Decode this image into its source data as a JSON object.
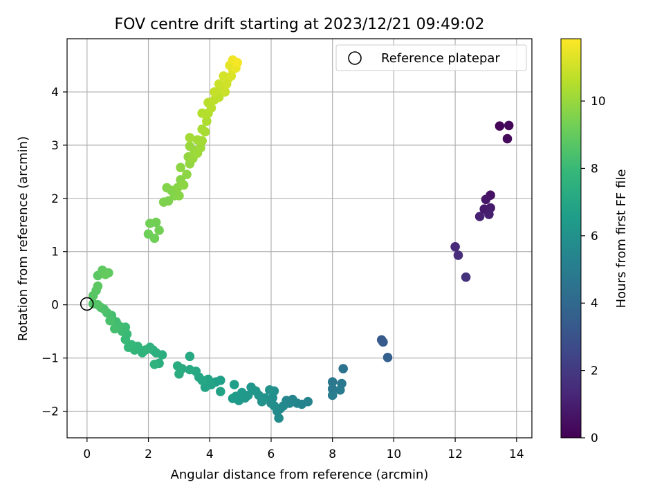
{
  "chart_data": {
    "type": "scatter",
    "title": "FOV centre drift starting at 2023/12/21 09:49:02",
    "xlabel": "Angular distance from reference (arcmin)",
    "ylabel": "Rotation from reference (arcmin)",
    "xlim": [
      -0.65,
      14.5
    ],
    "ylim": [
      -2.5,
      5.0
    ],
    "xticks": [
      0,
      2,
      4,
      6,
      8,
      10,
      12,
      14
    ],
    "yticks": [
      -2,
      -1,
      0,
      1,
      2,
      3,
      4
    ],
    "grid": true,
    "legend": {
      "position": "upper-right",
      "entries": [
        "Reference platepar"
      ]
    },
    "reference_point": {
      "x": 0,
      "y": 0,
      "marker": "open-circle"
    },
    "colorbar": {
      "label": "Hours from first FF file",
      "colormap": "viridis",
      "min": 0,
      "max": 11.85,
      "ticks": [
        0,
        2,
        4,
        6,
        8,
        10
      ]
    },
    "series": [
      {
        "color_by": "hours",
        "points": [
          {
            "x": 13.45,
            "y": 3.36,
            "c": 0.1
          },
          {
            "x": 13.75,
            "y": 3.37,
            "c": 0.2
          },
          {
            "x": 13.7,
            "y": 3.12,
            "c": 0.3
          },
          {
            "x": 13.15,
            "y": 2.06,
            "c": 0.6
          },
          {
            "x": 13.0,
            "y": 1.98,
            "c": 0.7
          },
          {
            "x": 12.95,
            "y": 1.8,
            "c": 0.8
          },
          {
            "x": 13.15,
            "y": 1.82,
            "c": 0.9
          },
          {
            "x": 13.1,
            "y": 1.7,
            "c": 1.0
          },
          {
            "x": 12.8,
            "y": 1.66,
            "c": 1.1
          },
          {
            "x": 12.0,
            "y": 1.09,
            "c": 1.4
          },
          {
            "x": 12.1,
            "y": 0.93,
            "c": 1.5
          },
          {
            "x": 12.35,
            "y": 0.52,
            "c": 1.7
          },
          {
            "x": 9.6,
            "y": -0.66,
            "c": 3.3
          },
          {
            "x": 9.65,
            "y": -0.7,
            "c": 3.4
          },
          {
            "x": 9.8,
            "y": -0.99,
            "c": 3.6
          },
          {
            "x": 8.35,
            "y": -1.2,
            "c": 4.5
          },
          {
            "x": 8.0,
            "y": -1.45,
            "c": 4.7
          },
          {
            "x": 8.3,
            "y": -1.48,
            "c": 4.8
          },
          {
            "x": 8.0,
            "y": -1.58,
            "c": 4.8
          },
          {
            "x": 8.25,
            "y": -1.6,
            "c": 4.9
          },
          {
            "x": 8.0,
            "y": -1.7,
            "c": 5.0
          },
          {
            "x": 7.2,
            "y": -1.82,
            "c": 5.3
          },
          {
            "x": 7.0,
            "y": -1.87,
            "c": 5.3
          },
          {
            "x": 6.85,
            "y": -1.85,
            "c": 5.4
          },
          {
            "x": 6.7,
            "y": -1.78,
            "c": 5.4
          },
          {
            "x": 6.6,
            "y": -1.85,
            "c": 5.5
          },
          {
            "x": 6.5,
            "y": -1.8,
            "c": 5.5
          },
          {
            "x": 6.4,
            "y": -1.9,
            "c": 5.6
          },
          {
            "x": 6.3,
            "y": -1.95,
            "c": 5.6
          },
          {
            "x": 6.2,
            "y": -2.0,
            "c": 5.7
          },
          {
            "x": 6.25,
            "y": -2.13,
            "c": 5.7
          },
          {
            "x": 6.1,
            "y": -1.9,
            "c": 5.8
          },
          {
            "x": 6.0,
            "y": -1.85,
            "c": 5.8
          },
          {
            "x": 6.05,
            "y": -1.75,
            "c": 5.9
          },
          {
            "x": 6.1,
            "y": -1.62,
            "c": 5.9
          },
          {
            "x": 5.95,
            "y": -1.6,
            "c": 6.0
          },
          {
            "x": 5.8,
            "y": -1.75,
            "c": 6.0
          },
          {
            "x": 5.7,
            "y": -1.82,
            "c": 6.1
          },
          {
            "x": 5.6,
            "y": -1.7,
            "c": 6.1
          },
          {
            "x": 5.5,
            "y": -1.62,
            "c": 6.2
          },
          {
            "x": 5.35,
            "y": -1.55,
            "c": 6.2
          },
          {
            "x": 5.25,
            "y": -1.7,
            "c": 6.3
          },
          {
            "x": 5.15,
            "y": -1.75,
            "c": 6.3
          },
          {
            "x": 5.05,
            "y": -1.65,
            "c": 6.4
          },
          {
            "x": 4.95,
            "y": -1.8,
            "c": 6.4
          },
          {
            "x": 4.85,
            "y": -1.72,
            "c": 6.5
          },
          {
            "x": 4.75,
            "y": -1.76,
            "c": 6.5
          },
          {
            "x": 4.8,
            "y": -1.5,
            "c": 6.6
          },
          {
            "x": 4.35,
            "y": -1.42,
            "c": 6.7
          },
          {
            "x": 4.2,
            "y": -1.45,
            "c": 6.7
          },
          {
            "x": 4.35,
            "y": -1.63,
            "c": 6.8
          },
          {
            "x": 4.05,
            "y": -1.5,
            "c": 6.8
          },
          {
            "x": 3.95,
            "y": -1.4,
            "c": 6.9
          },
          {
            "x": 3.85,
            "y": -1.55,
            "c": 6.9
          },
          {
            "x": 3.75,
            "y": -1.42,
            "c": 7.0
          },
          {
            "x": 3.65,
            "y": -1.36,
            "c": 7.0
          },
          {
            "x": 3.55,
            "y": -1.25,
            "c": 7.1
          },
          {
            "x": 3.35,
            "y": -0.97,
            "c": 7.1
          },
          {
            "x": 3.35,
            "y": -1.22,
            "c": 7.2
          },
          {
            "x": 3.1,
            "y": -1.2,
            "c": 7.2
          },
          {
            "x": 2.95,
            "y": -1.15,
            "c": 7.3
          },
          {
            "x": 3.0,
            "y": -1.3,
            "c": 7.3
          },
          {
            "x": 2.45,
            "y": -0.94,
            "c": 7.4
          },
          {
            "x": 2.35,
            "y": -1.1,
            "c": 7.4
          },
          {
            "x": 2.25,
            "y": -0.9,
            "c": 7.5
          },
          {
            "x": 2.15,
            "y": -0.85,
            "c": 7.5
          },
          {
            "x": 2.2,
            "y": -1.12,
            "c": 7.6
          },
          {
            "x": 2.05,
            "y": -0.8,
            "c": 7.6
          },
          {
            "x": 1.9,
            "y": -0.85,
            "c": 7.7
          },
          {
            "x": 1.8,
            "y": -0.9,
            "c": 7.7
          },
          {
            "x": 1.65,
            "y": -0.78,
            "c": 7.8
          },
          {
            "x": 1.55,
            "y": -0.85,
            "c": 7.8
          },
          {
            "x": 1.45,
            "y": -0.75,
            "c": 7.9
          },
          {
            "x": 1.35,
            "y": -0.8,
            "c": 7.9
          },
          {
            "x": 1.25,
            "y": -0.65,
            "c": 8.0
          },
          {
            "x": 1.3,
            "y": -0.55,
            "c": 8.0
          },
          {
            "x": 1.25,
            "y": -0.42,
            "c": 8.1
          },
          {
            "x": 1.15,
            "y": -0.5,
            "c": 8.1
          },
          {
            "x": 1.05,
            "y": -0.4,
            "c": 8.2
          },
          {
            "x": 0.95,
            "y": -0.32,
            "c": 8.2
          },
          {
            "x": 0.9,
            "y": -0.45,
            "c": 8.3
          },
          {
            "x": 0.8,
            "y": -0.2,
            "c": 8.3
          },
          {
            "x": 0.75,
            "y": -0.3,
            "c": 8.4
          },
          {
            "x": 0.65,
            "y": -0.15,
            "c": 8.4
          },
          {
            "x": 0.55,
            "y": -0.08,
            "c": 8.5
          },
          {
            "x": 0.45,
            "y": -0.05,
            "c": 8.5
          },
          {
            "x": 0.35,
            "y": 0.0,
            "c": 8.6
          },
          {
            "x": 0.2,
            "y": 0.02,
            "c": 8.6
          },
          {
            "x": 0.2,
            "y": 0.17,
            "c": 8.7
          },
          {
            "x": 0.3,
            "y": 0.27,
            "c": 8.7
          },
          {
            "x": 0.35,
            "y": 0.35,
            "c": 8.8
          },
          {
            "x": 0.35,
            "y": 0.55,
            "c": 8.8
          },
          {
            "x": 0.5,
            "y": 0.65,
            "c": 8.9
          },
          {
            "x": 0.7,
            "y": 0.6,
            "c": 8.9
          },
          {
            "x": 0.6,
            "y": 0.57,
            "c": 9.0
          },
          {
            "x": 2.0,
            "y": 1.33,
            "c": 9.2
          },
          {
            "x": 2.2,
            "y": 1.25,
            "c": 9.2
          },
          {
            "x": 2.35,
            "y": 1.4,
            "c": 9.3
          },
          {
            "x": 2.25,
            "y": 1.55,
            "c": 9.3
          },
          {
            "x": 2.05,
            "y": 1.53,
            "c": 9.3
          },
          {
            "x": 2.5,
            "y": 1.93,
            "c": 9.5
          },
          {
            "x": 2.65,
            "y": 1.95,
            "c": 9.5
          },
          {
            "x": 2.75,
            "y": 2.15,
            "c": 9.6
          },
          {
            "x": 2.6,
            "y": 2.2,
            "c": 9.6
          },
          {
            "x": 2.85,
            "y": 2.05,
            "c": 9.6
          },
          {
            "x": 2.95,
            "y": 2.2,
            "c": 9.7
          },
          {
            "x": 3.05,
            "y": 2.35,
            "c": 9.7
          },
          {
            "x": 3.0,
            "y": 2.05,
            "c": 9.7
          },
          {
            "x": 3.15,
            "y": 2.25,
            "c": 9.8
          },
          {
            "x": 3.25,
            "y": 2.45,
            "c": 9.8
          },
          {
            "x": 3.05,
            "y": 2.58,
            "c": 9.8
          },
          {
            "x": 3.35,
            "y": 2.65,
            "c": 9.9
          },
          {
            "x": 3.3,
            "y": 2.78,
            "c": 9.9
          },
          {
            "x": 3.45,
            "y": 2.75,
            "c": 10.0
          },
          {
            "x": 3.5,
            "y": 2.9,
            "c": 10.0
          },
          {
            "x": 3.35,
            "y": 2.98,
            "c": 10.0
          },
          {
            "x": 3.6,
            "y": 2.85,
            "c": 10.1
          },
          {
            "x": 3.7,
            "y": 2.95,
            "c": 10.1
          },
          {
            "x": 3.75,
            "y": 3.08,
            "c": 10.2
          },
          {
            "x": 3.6,
            "y": 3.1,
            "c": 10.2
          },
          {
            "x": 3.35,
            "y": 3.14,
            "c": 10.2
          },
          {
            "x": 3.85,
            "y": 3.25,
            "c": 10.3
          },
          {
            "x": 3.75,
            "y": 3.3,
            "c": 10.3
          },
          {
            "x": 3.9,
            "y": 3.45,
            "c": 10.4
          },
          {
            "x": 3.75,
            "y": 3.6,
            "c": 10.5
          },
          {
            "x": 3.95,
            "y": 3.6,
            "c": 10.5
          },
          {
            "x": 4.05,
            "y": 3.7,
            "c": 10.6
          },
          {
            "x": 3.95,
            "y": 3.8,
            "c": 10.6
          },
          {
            "x": 4.15,
            "y": 3.85,
            "c": 10.7
          },
          {
            "x": 4.3,
            "y": 3.9,
            "c": 10.7
          },
          {
            "x": 4.15,
            "y": 4.0,
            "c": 10.8
          },
          {
            "x": 4.35,
            "y": 4.05,
            "c": 10.8
          },
          {
            "x": 4.5,
            "y": 4.0,
            "c": 10.9
          },
          {
            "x": 4.3,
            "y": 4.15,
            "c": 10.9
          },
          {
            "x": 4.55,
            "y": 4.15,
            "c": 11.0
          },
          {
            "x": 4.6,
            "y": 4.25,
            "c": 11.0
          },
          {
            "x": 4.45,
            "y": 4.3,
            "c": 11.1
          },
          {
            "x": 4.7,
            "y": 4.3,
            "c": 11.2
          },
          {
            "x": 4.75,
            "y": 4.42,
            "c": 11.3
          },
          {
            "x": 4.65,
            "y": 4.5,
            "c": 11.4
          },
          {
            "x": 4.85,
            "y": 4.45,
            "c": 11.5
          },
          {
            "x": 4.75,
            "y": 4.6,
            "c": 11.6
          },
          {
            "x": 4.9,
            "y": 4.55,
            "c": 11.7
          }
        ]
      }
    ]
  }
}
